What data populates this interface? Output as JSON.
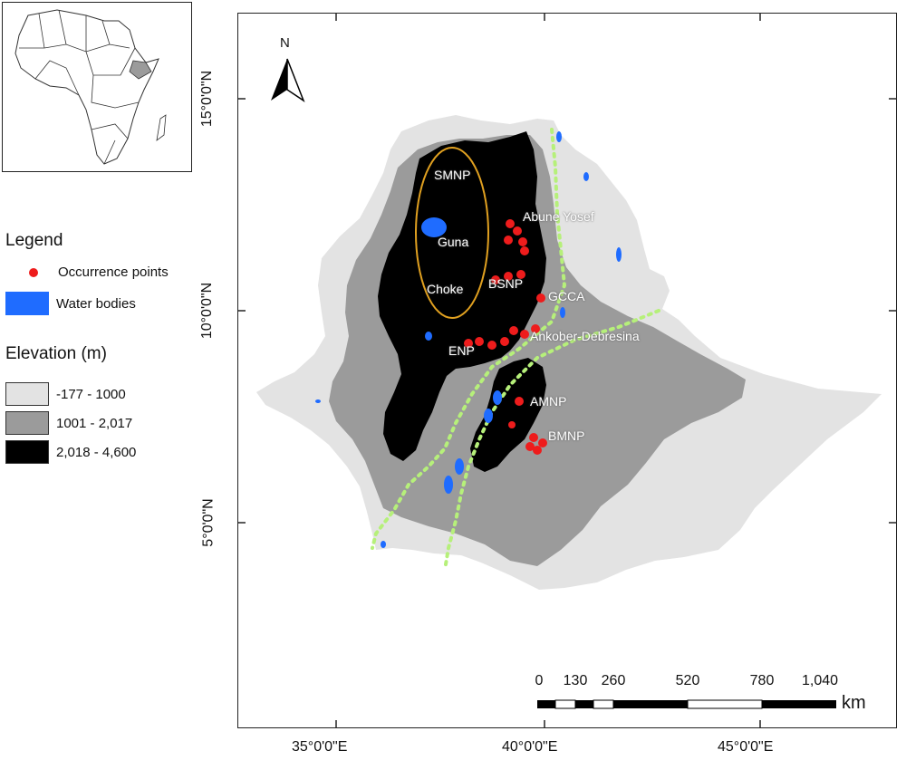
{
  "map": {
    "north_label": "N",
    "legend": {
      "title": "Legend",
      "occurrence": {
        "label": "Occurrence points",
        "color": "#ee1c1c"
      },
      "water": {
        "label": "Water bodies",
        "color": "#1f6cff"
      }
    },
    "elevation": {
      "title": "Elevation (m)",
      "classes": [
        {
          "label": "-177 - 1000",
          "color": "#e3e3e3"
        },
        {
          "label": "1001 - 2,017",
          "color": "#9b9b9b"
        },
        {
          "label": "2,018 - 4,600",
          "color": "#000000"
        }
      ]
    },
    "lon_labels": [
      "35°0'0\"E",
      "40°0'0\"E",
      "45°0'0\"E"
    ],
    "lat_labels": [
      "15°0'0\"N",
      "10°0'0\"N",
      "5°0'0\"N"
    ],
    "places": [
      "SMNP",
      "Abune Yosef",
      "Guna",
      "BSNP",
      "Choke",
      "GCCA",
      "ENP",
      "Ankober-Debresina",
      "AMNP",
      "BMNP"
    ],
    "scale": {
      "ticks": [
        "0",
        "130",
        "260",
        "520",
        "780",
        "1,040"
      ],
      "unit": "km"
    },
    "colors": {
      "highland": "#000000",
      "mid": "#9b9b9b",
      "low": "#e3e3e3",
      "rift": "#b6f07a",
      "ellipse": "#e0a020"
    }
  }
}
